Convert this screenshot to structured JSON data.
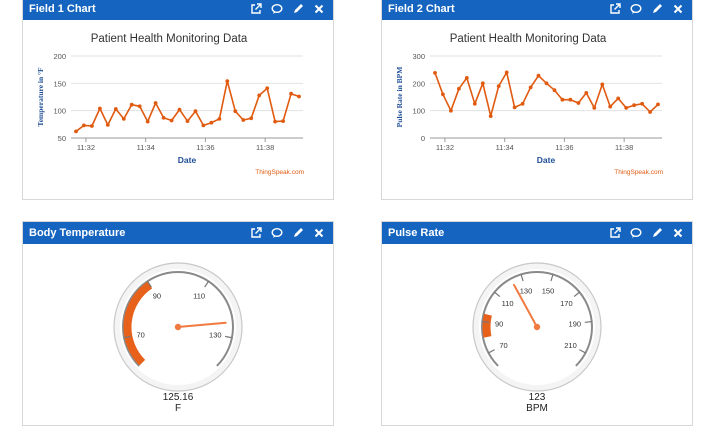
{
  "widgets": {
    "field1": {
      "title": "Field 1 Chart",
      "chart_data": {
        "type": "line",
        "title": "Patient Health Monitoring Data",
        "xlabel": "Date",
        "ylabel": "Temperature in °F",
        "ylim": [
          50,
          200
        ],
        "yticks": [
          50,
          100,
          150,
          200
        ],
        "xticks": [
          {
            "t": 1,
            "label": "11:32"
          },
          {
            "t": 7,
            "label": "11:34"
          },
          {
            "t": 13,
            "label": "11:36"
          },
          {
            "t": 19,
            "label": "11:38"
          }
        ],
        "xrange": [
          -0.5,
          22.8
        ],
        "color": "#e05a10",
        "values": [
          62,
          73,
          72,
          104,
          74,
          103,
          85,
          111,
          108,
          80,
          114,
          87,
          82,
          102,
          81,
          99,
          73,
          78,
          85,
          154,
          99,
          83,
          86,
          128,
          141,
          80,
          81,
          131,
          126
        ],
        "credit": "ThingSpeak.com"
      }
    },
    "field2": {
      "title": "Field 2 Chart",
      "chart_data": {
        "type": "line",
        "title": "Patient Health Monitoring Data",
        "xlabel": "Date",
        "ylabel": "Pulse Rate in BPM",
        "ylim": [
          0,
          300
        ],
        "yticks": [
          0,
          100,
          200,
          300
        ],
        "xticks": [
          {
            "t": 1,
            "label": "11:32"
          },
          {
            "t": 7,
            "label": "11:34"
          },
          {
            "t": 13,
            "label": "11:36"
          },
          {
            "t": 19,
            "label": "11:38"
          }
        ],
        "xrange": [
          -0.5,
          22.8
        ],
        "color": "#e05a10",
        "values": [
          238,
          160,
          100,
          180,
          220,
          125,
          200,
          80,
          190,
          240,
          112,
          125,
          185,
          228,
          200,
          175,
          140,
          140,
          128,
          165,
          110,
          196,
          115,
          145,
          110,
          120,
          125,
          95,
          123
        ],
        "credit": "ThingSpeak.com"
      }
    },
    "temperature": {
      "title": "Body Temperature",
      "gauge": {
        "min": 60,
        "max": 140,
        "ticks": [
          70,
          90,
          110,
          130
        ],
        "band": [
          60,
          90
        ],
        "band_color": "#e8611a",
        "value": 125.16,
        "value_text": "125.16",
        "unit": "F"
      }
    },
    "pulse": {
      "title": "Pulse Rate",
      "gauge": {
        "min": 60,
        "max": 220,
        "ticks": [
          70,
          90,
          110,
          130,
          150,
          170,
          190,
          210
        ],
        "band": [
          80,
          95
        ],
        "band_color": "#e8611a",
        "value": 123,
        "value_text": "123",
        "unit": "BPM"
      }
    }
  },
  "colors": {
    "header": "#1565c0",
    "accent": "#e05a10",
    "axis_title": "#1f4e96"
  },
  "icons": [
    "external-link-icon",
    "comment-icon",
    "pencil-icon",
    "close-icon"
  ]
}
